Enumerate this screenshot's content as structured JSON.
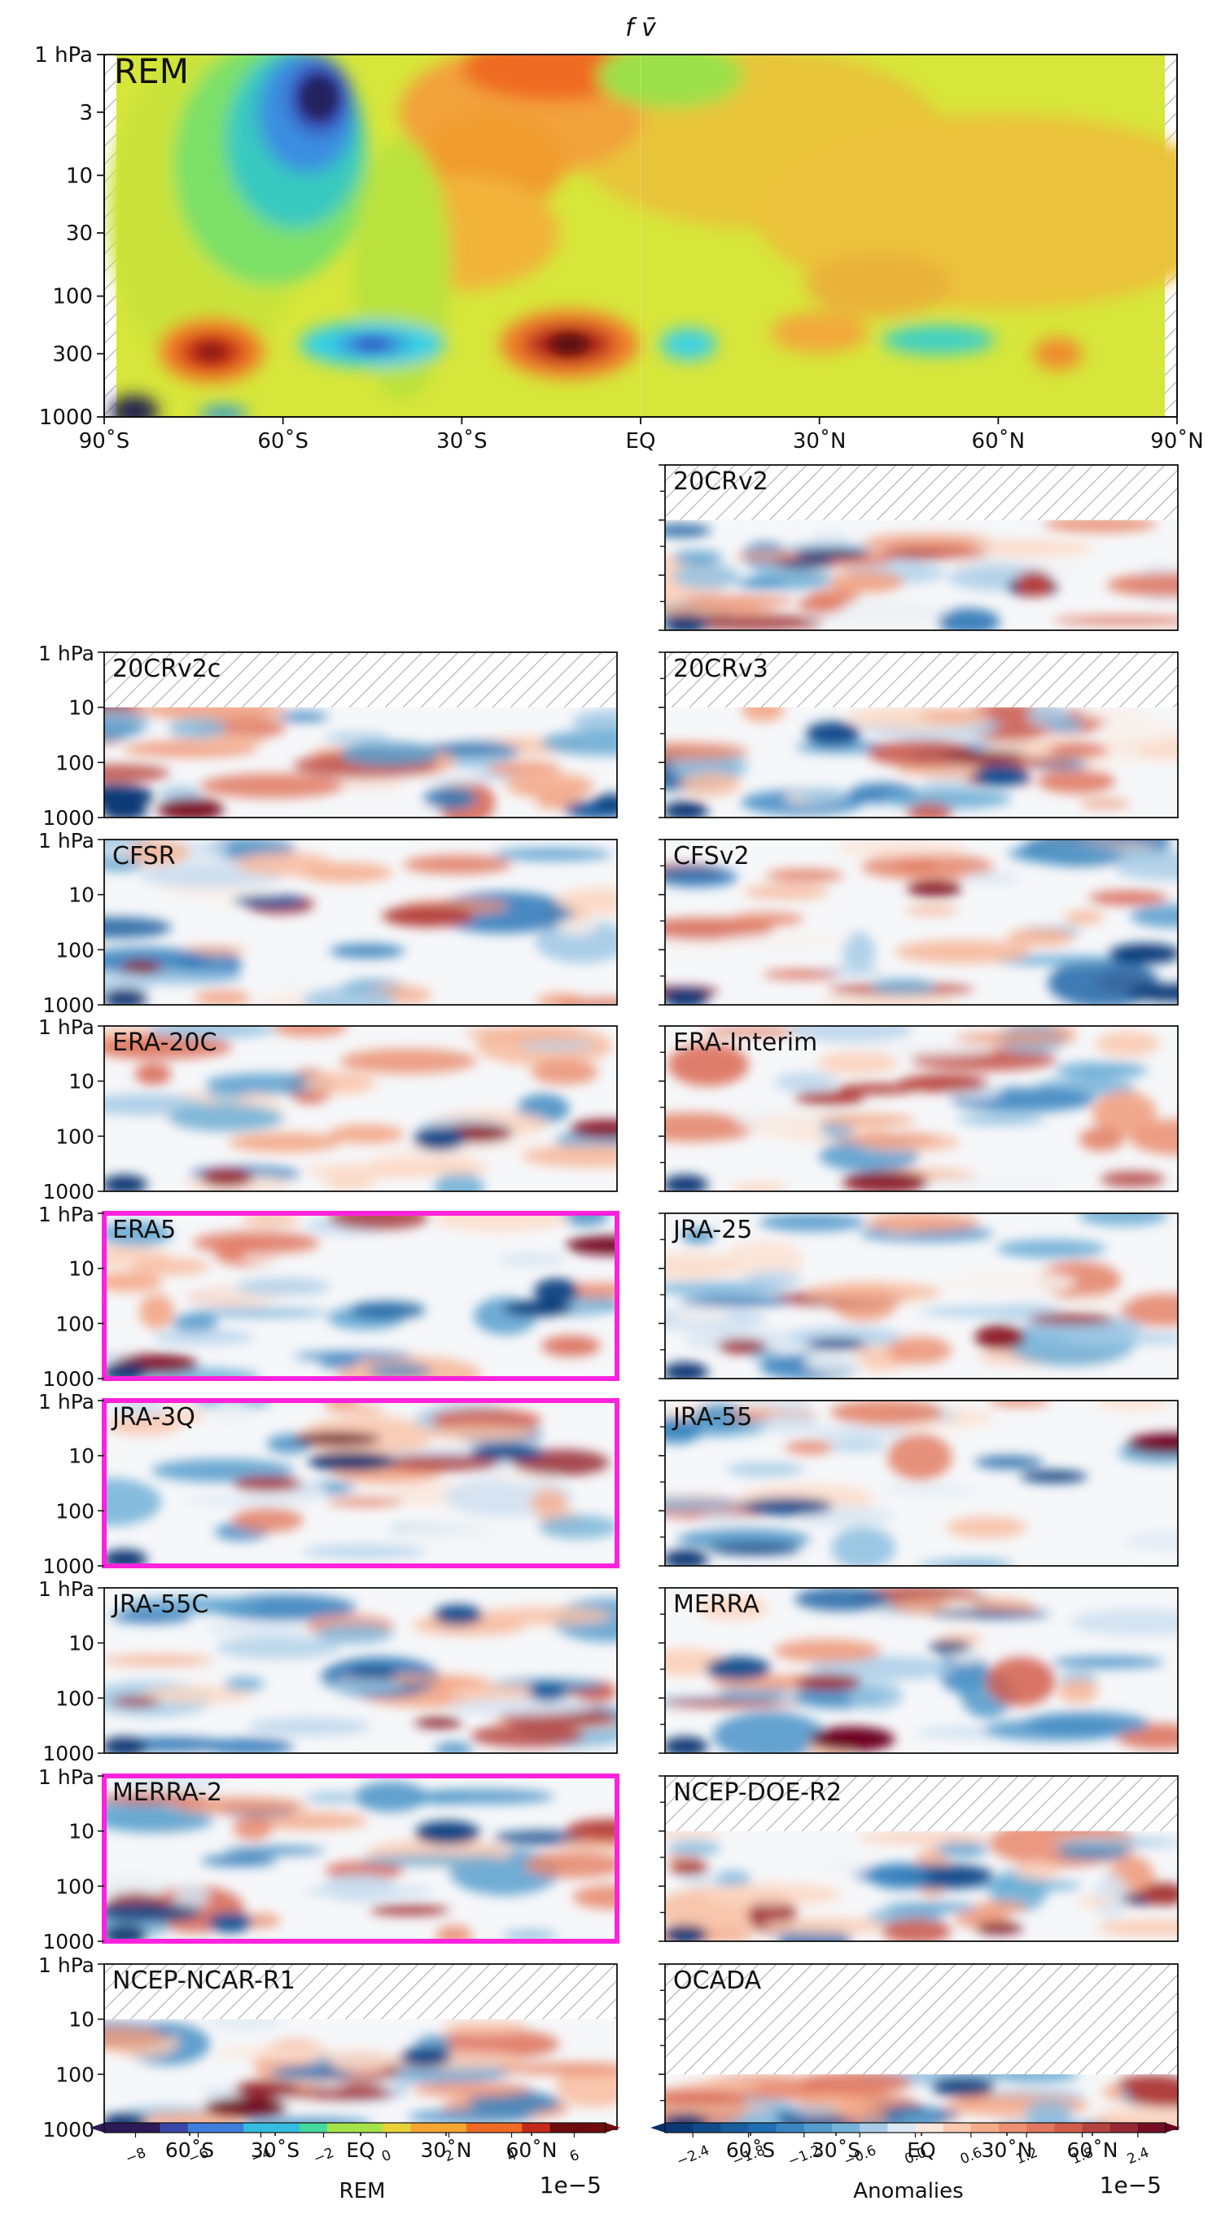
{
  "title": "f v̄",
  "colors": {
    "highlight": "#ff22dd",
    "rem_label": "#ff22dd",
    "blue_dark": "#1a3f8a",
    "red_dark": "#7a0a14"
  },
  "chart_data": [
    {
      "type": "heatmap",
      "panel": "REM",
      "label": "REM",
      "x_ticks": [
        "90˚S",
        "60˚S",
        "30˚S",
        "EQ",
        "30˚N",
        "60˚N",
        "90˚N"
      ],
      "y_ticks": [
        "1 hPa",
        "3",
        "10",
        "30",
        "100",
        "300",
        "1000"
      ],
      "y_range_hPa": [
        1000,
        1
      ],
      "x_range_deg": [
        -90,
        90
      ],
      "colorbar": {
        "label": "REM",
        "scale": "1e−5",
        "ticks": [
          "−8",
          "−6",
          "−4",
          "−2",
          "0",
          "2",
          "4",
          "6"
        ],
        "range": [
          -9,
          7
        ]
      }
    },
    {
      "type": "heatmap",
      "description_of_values": "anomalies relative to REM",
      "colorbar": {
        "label": "Anomalies",
        "scale": "1e−5",
        "ticks": [
          "−2.4",
          "−1.8",
          "−1.2",
          "−0.6",
          "0.0",
          "0.6",
          "1.2",
          "1.8",
          "2.4"
        ],
        "range": [
          -2.7,
          2.7
        ]
      },
      "x_ticks": [
        "60˚S",
        "30˚S",
        "EQ",
        "30˚N",
        "60˚N"
      ],
      "y_ticks": [
        "1 hPa",
        "10",
        "100",
        "1000"
      ],
      "panels": [
        {
          "name": "20CRv2",
          "highlighted": false,
          "hatched_top_to_hPa": 10
        },
        {
          "name": "20CRv2c",
          "highlighted": false,
          "hatched_top_to_hPa": 10
        },
        {
          "name": "20CRv3",
          "highlighted": false,
          "hatched_top_to_hPa": 10
        },
        {
          "name": "CFSR",
          "highlighted": false,
          "hatched_top_to_hPa": 1
        },
        {
          "name": "CFSv2",
          "highlighted": false,
          "hatched_top_to_hPa": 1
        },
        {
          "name": "ERA-20C",
          "highlighted": false,
          "hatched_top_to_hPa": 1
        },
        {
          "name": "ERA-Interim",
          "highlighted": false,
          "hatched_top_to_hPa": 1
        },
        {
          "name": "ERA5",
          "highlighted": true,
          "hatched_top_to_hPa": 1
        },
        {
          "name": "JRA-25",
          "highlighted": false,
          "hatched_top_to_hPa": 1
        },
        {
          "name": "JRA-3Q",
          "highlighted": true,
          "hatched_top_to_hPa": 1
        },
        {
          "name": "JRA-55",
          "highlighted": false,
          "hatched_top_to_hPa": 1
        },
        {
          "name": "JRA-55C",
          "highlighted": false,
          "hatched_top_to_hPa": 1
        },
        {
          "name": "MERRA",
          "highlighted": false,
          "hatched_top_to_hPa": 1
        },
        {
          "name": "MERRA-2",
          "highlighted": true,
          "hatched_top_to_hPa": 1
        },
        {
          "name": "NCEP-DOE-R2",
          "highlighted": false,
          "hatched_top_to_hPa": 10
        },
        {
          "name": "NCEP-NCAR-R1",
          "highlighted": false,
          "hatched_top_to_hPa": 10
        },
        {
          "name": "OCADA",
          "highlighted": false,
          "hatched_top_to_hPa": 100
        }
      ]
    }
  ]
}
